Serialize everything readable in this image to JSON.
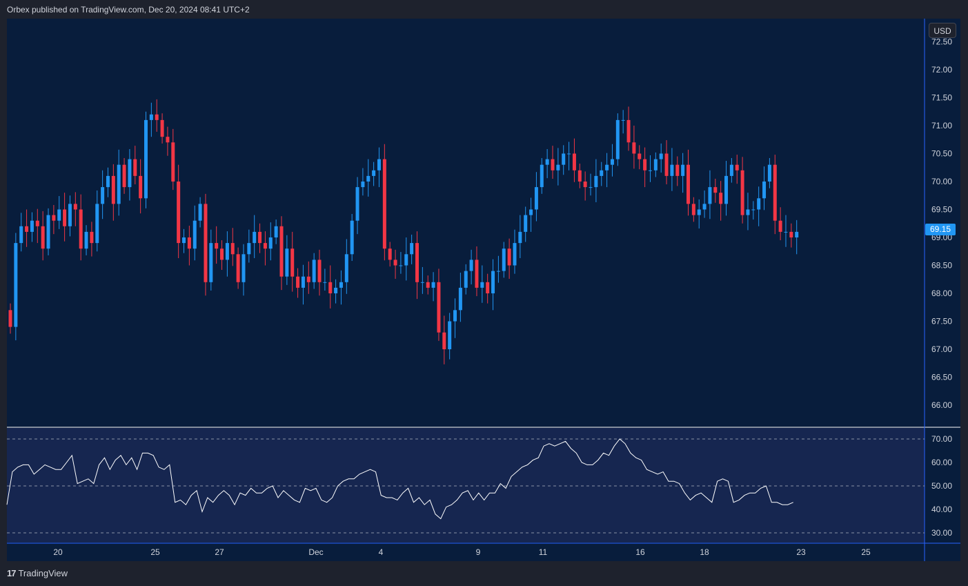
{
  "header": {
    "attribution": "Orbex published on TradingView.com, Dec 20, 2024 08:41 UTC+2"
  },
  "currency_button": "USD",
  "last_price": "69.15",
  "footer": {
    "logo_icon": "tradingview-logo-icon",
    "brand": "TradingView"
  },
  "colors": {
    "up": "#2196f3",
    "down": "#f23645",
    "background": "#081d3c",
    "rsi_panel": "#162650",
    "rsi_line": "#ffffff"
  },
  "chart_data": [
    {
      "type": "candlestick",
      "title": "",
      "y_ticks": [
        "72.50",
        "72.00",
        "71.50",
        "71.00",
        "70.50",
        "70.00",
        "69.50",
        "69.00",
        "68.50",
        "68.00",
        "67.50",
        "67.00",
        "66.50",
        "66.00"
      ],
      "ylim": [
        65.5,
        72.6
      ],
      "x_ticks": [
        "20",
        "25",
        "27",
        "Dec",
        "4",
        "9",
        "11",
        "16",
        "18",
        "23",
        "25"
      ],
      "close": [
        67.4,
        68.9,
        69.2,
        69.1,
        69.3,
        69.2,
        68.8,
        69.4,
        69.3,
        69.5,
        69.2,
        69.6,
        69.5,
        68.8,
        69.1,
        68.9,
        69.6,
        69.9,
        70.1,
        69.6,
        70.3,
        69.9,
        70.4,
        70.1,
        69.7,
        71.1,
        71.2,
        71.1,
        70.8,
        70.7,
        70.0,
        68.9,
        69.0,
        68.8,
        69.3,
        69.6,
        68.2,
        68.9,
        68.8,
        68.6,
        68.9,
        68.7,
        68.2,
        68.7,
        68.9,
        69.1,
        68.9,
        68.8,
        69.0,
        69.2,
        68.3,
        68.8,
        68.3,
        68.1,
        68.3,
        68.2,
        68.6,
        68.2,
        68.2,
        68.0,
        68.1,
        68.2,
        68.7,
        69.3,
        69.9,
        70.0,
        70.1,
        70.2,
        70.4,
        68.8,
        68.6,
        68.5,
        68.5,
        68.7,
        68.9,
        68.2,
        68.2,
        68.1,
        68.2,
        67.3,
        67.0,
        67.5,
        67.7,
        68.1,
        68.4,
        68.6,
        68.1,
        68.2,
        68.0,
        68.4,
        68.4,
        68.8,
        68.5,
        68.9,
        69.1,
        69.4,
        69.5,
        69.9,
        70.3,
        70.4,
        70.2,
        70.3,
        70.5,
        70.5,
        70.2,
        70.0,
        69.9,
        69.9,
        70.1,
        70.2,
        70.3,
        70.4,
        71.1,
        71.1,
        70.7,
        70.5,
        70.4,
        70.2,
        70.2,
        70.4,
        70.5,
        70.1,
        70.3,
        70.1,
        70.3,
        69.6,
        69.4,
        69.5,
        69.6,
        69.9,
        69.8,
        69.6,
        70.1,
        70.3,
        70.2,
        69.4,
        69.5,
        69.5,
        69.7,
        70.0,
        70.3,
        69.3,
        69.1,
        69.1,
        69.0,
        69.1
      ],
      "open": [
        67.7,
        67.4,
        68.9,
        69.2,
        69.1,
        69.3,
        69.2,
        68.8,
        69.4,
        69.3,
        69.5,
        69.2,
        69.6,
        69.5,
        68.8,
        69.1,
        68.9,
        69.6,
        69.9,
        70.1,
        69.6,
        70.3,
        69.9,
        70.4,
        70.1,
        69.7,
        71.1,
        71.2,
        71.1,
        70.8,
        70.7,
        70.0,
        68.9,
        69.0,
        68.8,
        69.3,
        69.6,
        68.2,
        68.9,
        68.8,
        68.6,
        68.9,
        68.7,
        68.2,
        68.7,
        68.9,
        69.1,
        68.9,
        68.8,
        69.0,
        69.2,
        68.3,
        68.8,
        68.3,
        68.1,
        68.3,
        68.2,
        68.6,
        68.2,
        68.2,
        68.0,
        68.1,
        68.2,
        68.7,
        69.3,
        69.9,
        70.0,
        70.1,
        70.2,
        70.4,
        68.8,
        68.6,
        68.5,
        68.5,
        68.7,
        68.9,
        68.2,
        68.2,
        68.1,
        68.2,
        67.3,
        67.0,
        67.5,
        67.7,
        68.1,
        68.4,
        68.6,
        68.1,
        68.2,
        68.0,
        68.4,
        68.4,
        68.8,
        68.5,
        68.9,
        69.1,
        69.4,
        69.5,
        69.9,
        70.3,
        70.4,
        70.2,
        70.3,
        70.5,
        70.5,
        70.2,
        70.0,
        69.9,
        69.9,
        70.1,
        70.2,
        70.3,
        70.4,
        71.1,
        71.1,
        70.7,
        70.5,
        70.4,
        70.2,
        70.2,
        70.4,
        70.5,
        70.1,
        70.3,
        70.1,
        70.3,
        69.6,
        69.4,
        69.5,
        69.6,
        69.9,
        69.8,
        69.6,
        70.1,
        70.3,
        70.2,
        69.4,
        69.5,
        69.5,
        69.7,
        70.0,
        70.3,
        69.3,
        69.1,
        69.1,
        69.0
      ]
    },
    {
      "type": "line",
      "title": "",
      "y_ticks": [
        "70.00",
        "60.00",
        "50.00",
        "40.00",
        "30.00"
      ],
      "ylim": [
        25,
        75
      ],
      "reference_lines": [
        70,
        50,
        30
      ],
      "values": [
        42,
        56,
        58,
        59,
        59,
        55,
        57,
        59,
        58,
        57,
        57,
        60,
        63,
        51,
        52,
        53,
        51,
        59,
        62,
        57,
        61,
        63,
        59,
        62,
        57,
        64,
        64,
        63,
        58,
        57,
        59,
        43,
        44,
        42,
        46,
        48,
        39,
        45,
        43,
        46,
        48,
        46,
        42,
        47,
        46,
        49,
        47,
        47,
        49,
        50,
        45,
        48,
        46,
        44,
        43,
        49,
        48,
        49,
        44,
        43,
        45,
        50,
        52,
        53,
        53,
        55,
        56,
        57,
        56,
        46,
        45,
        45,
        44,
        47,
        49,
        43,
        45,
        42,
        44,
        38,
        36,
        41,
        42,
        44,
        47,
        48,
        44,
        47,
        44,
        47,
        47,
        51,
        49,
        54,
        56,
        58,
        59,
        61,
        62,
        67,
        68,
        67,
        68,
        69,
        66,
        64,
        60,
        59,
        59,
        61,
        64,
        63,
        67,
        70,
        68,
        64,
        62,
        61,
        57,
        56,
        55,
        56,
        52,
        52,
        51,
        47,
        44,
        46,
        47,
        45,
        43,
        52,
        53,
        52,
        43,
        44,
        46,
        47,
        47,
        49,
        50,
        43,
        43,
        42,
        42,
        43
      ]
    }
  ]
}
